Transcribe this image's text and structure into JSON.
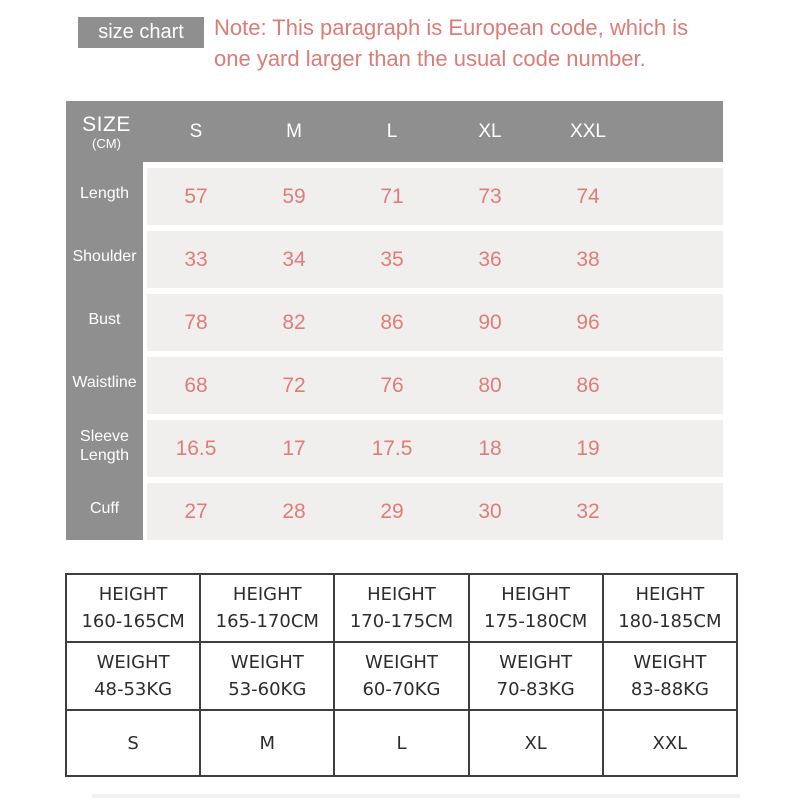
{
  "badge": {
    "label": "size chart"
  },
  "note": {
    "text": "Note: This paragraph is European code, which is one yard larger than the usual code number."
  },
  "colors": {
    "header_gray": "#8f8f8f",
    "row_background": "#f0efee",
    "accent_salmon": "#dd7c77",
    "table_border": "#3e3e3e"
  },
  "size_table": {
    "header": {
      "title": "SIZE",
      "unit": "(CM)",
      "columns": [
        "S",
        "M",
        "L",
        "XL",
        "XXL"
      ]
    },
    "rows": [
      {
        "label": "Length",
        "values": [
          "57",
          "59",
          "71",
          "73",
          "74"
        ]
      },
      {
        "label": "Shoulder",
        "values": [
          "33",
          "34",
          "35",
          "36",
          "38"
        ]
      },
      {
        "label": "Bust",
        "values": [
          "78",
          "82",
          "86",
          "90",
          "96"
        ]
      },
      {
        "label": "Waistline",
        "values": [
          "68",
          "72",
          "76",
          "80",
          "86"
        ]
      },
      {
        "label": "Sleeve Length",
        "values": [
          "16.5",
          "17",
          "17.5",
          "18",
          "19"
        ]
      },
      {
        "label": "Cuff",
        "values": [
          "27",
          "28",
          "29",
          "30",
          "32"
        ]
      }
    ]
  },
  "fit_table": {
    "rows": [
      {
        "label": "HEIGHT",
        "values": [
          "160-165CM",
          "165-170CM",
          "170-175CM",
          "175-180CM",
          "180-185CM"
        ]
      },
      {
        "label": "WEIGHT",
        "values": [
          "48-53KG",
          "53-60KG",
          "60-70KG",
          "70-83KG",
          "83-88KG"
        ]
      },
      {
        "label": "",
        "values": [
          "S",
          "M",
          "L",
          "XL",
          "XXL"
        ]
      }
    ]
  }
}
